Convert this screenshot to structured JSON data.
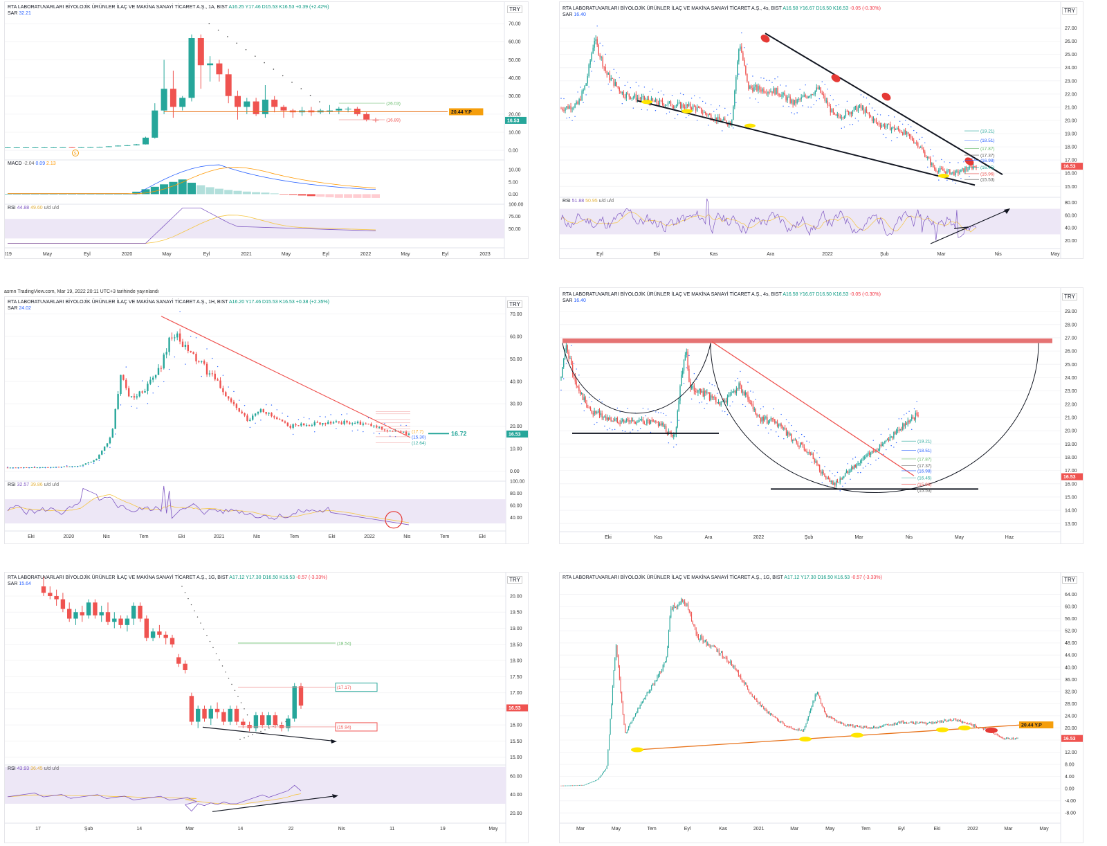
{
  "byline": "asrnn TradingView.com, Mar 19, 2022 20:11 UTC+3 tarihinde yayınlandı",
  "colors": {
    "up": "#26a69a",
    "down": "#ef5350",
    "sar": "#2962ff",
    "rsi": "#7e57c2",
    "rsi_ma": "#f5c542",
    "band": "#ede7f6",
    "trend_black": "#131722",
    "trend_red": "#ef5350",
    "orange": "#f59e0b",
    "yellow": "#ffe500",
    "price_red": "#ef5350",
    "price_green": "#26a69a"
  },
  "panels": [
    {
      "id": "p1",
      "title": {
        "name": "RTA LABORATUVARLARI BİYOLOJİK ÜRÜNLER İLAÇ VE MAKİNA SANAYİ TİCARET A.Ş., 1A, BIST",
        "a": "A16.25",
        "y": "Y17.46",
        "d": "D15.53",
        "k": "K16.53",
        "chg": "+0.39 (+2.42%)"
      },
      "sar": "32.21",
      "currency": "TRY",
      "chart_data": {
        "type": "candlestick",
        "timeframe": "1A",
        "x_labels": [
          "019",
          "May",
          "Eyl",
          "2020",
          "May",
          "Eyl",
          "2021",
          "May",
          "Eyl",
          "2022",
          "May",
          "Eyl",
          "2023"
        ],
        "y_ticks": [
          "70.00",
          "60.00",
          "50.00",
          "40.00",
          "30.00",
          "20.00",
          "10.00",
          "0.00"
        ],
        "ylim": [
          -3,
          75
        ],
        "candles": [
          [
            1.6,
            1.7,
            1.5,
            1.6
          ],
          [
            1.6,
            1.7,
            1.5,
            1.6
          ],
          [
            1.6,
            1.7,
            1.5,
            1.6
          ],
          [
            1.6,
            1.7,
            1.5,
            1.6
          ],
          [
            1.6,
            1.7,
            1.5,
            1.6
          ],
          [
            1.6,
            1.7,
            1.5,
            1.6
          ],
          [
            1.6,
            1.7,
            1.5,
            1.7
          ],
          [
            1.7,
            1.8,
            1.5,
            1.6
          ],
          [
            1.6,
            1.8,
            1.5,
            1.7
          ],
          [
            1.7,
            1.9,
            1.6,
            1.8
          ],
          [
            1.8,
            2.0,
            1.7,
            1.9
          ],
          [
            1.9,
            2.3,
            1.8,
            2.2
          ],
          [
            2.2,
            2.8,
            2.1,
            2.6
          ],
          [
            2.6,
            3.0,
            2.5,
            2.8
          ],
          [
            2.8,
            3.5,
            2.7,
            3.3
          ],
          [
            3.3,
            7.5,
            3.2,
            7
          ],
          [
            7,
            26,
            6.5,
            22
          ],
          [
            22,
            50,
            20,
            34
          ],
          [
            34,
            44,
            18,
            24
          ],
          [
            24,
            30,
            22,
            29
          ],
          [
            29,
            64,
            27,
            62
          ],
          [
            62,
            64,
            34,
            47
          ],
          [
            47,
            52,
            38,
            48
          ],
          [
            48,
            50,
            38,
            42
          ],
          [
            42,
            45,
            26,
            30
          ],
          [
            30,
            33,
            17,
            24
          ],
          [
            24,
            29,
            20,
            27
          ],
          [
            27,
            29,
            19,
            20
          ],
          [
            20,
            36,
            18,
            28
          ],
          [
            28,
            30,
            21,
            24
          ],
          [
            24,
            25,
            18,
            22
          ],
          [
            22,
            23,
            18,
            21
          ],
          [
            21,
            24,
            19,
            22
          ],
          [
            22,
            24,
            19,
            21
          ],
          [
            21,
            23,
            20,
            22
          ],
          [
            22,
            25,
            20,
            22
          ],
          [
            22,
            24,
            20,
            23
          ],
          [
            23,
            24,
            21,
            23
          ],
          [
            23,
            24,
            19,
            20
          ],
          [
            20,
            21,
            16,
            17
          ],
          [
            17,
            18,
            15.5,
            16.5
          ]
        ],
        "indicator_labels": {
          "price_label": "20.44 Y.P",
          "last": "16.53",
          "lvl_green": "(26.03)",
          "lvl_red": "(16.89)",
          "marker": "S"
        },
        "macd": {
          "label": "MACD",
          "values": [
            "-2.04",
            "0.09",
            "2.13"
          ],
          "y_ticks": [
            "10.00",
            "5.00",
            "0.00"
          ]
        },
        "rsi": {
          "label": "RSI",
          "values": [
            "44.88",
            "49.60"
          ],
          "extra": "u/d u/d",
          "y_ticks": [
            "100.00",
            "75.00",
            "50.00"
          ]
        }
      }
    },
    {
      "id": "p2",
      "title": {
        "name": "RTA LABORATUVARLARI BİYOLOJİK ÜRÜNLER İLAÇ VE MAKİNA SANAYİ TİCARET A.Ş., 4s, BIST",
        "a": "A16.58",
        "y": "Y16.67",
        "d": "D16.50",
        "k": "K16.53",
        "chg": "-0.05 (-0.30%)"
      },
      "sar": "16.40",
      "currency": "TRY",
      "chart_data": {
        "type": "candlestick",
        "timeframe": "4s",
        "x_labels": [
          "Eyl",
          "Eki",
          "Kas",
          "Ara",
          "2022",
          "Şub",
          "Mar",
          "Nis",
          "May"
        ],
        "y_ticks": [
          "27.00",
          "26.00",
          "25.00",
          "24.00",
          "23.00",
          "22.00",
          "21.00",
          "20.00",
          "19.00",
          "18.00",
          "17.00",
          "16.00",
          "15.00"
        ],
        "ylim": [
          14.7,
          27.5
        ],
        "levels": [
          "(19.21)",
          "(18.51)",
          "(17.87)",
          "(17.37)",
          "(16.98)",
          "(16.45)",
          "(15.96)",
          "(15.53)"
        ],
        "last": "16.53",
        "rsi": {
          "label": "RSI",
          "values": [
            "51.88",
            "50.95"
          ],
          "extra": "u/d u/d",
          "y_ticks": [
            "80.00",
            "60.00",
            "40.00",
            "20.00"
          ]
        }
      }
    },
    {
      "id": "p3",
      "title": {
        "name": "RTA LABORATUVARLARI BİYOLOJİK ÜRÜNLER İLAÇ VE MAKİNA SANAYİ TİCARET A.Ş., 1H, BIST",
        "a": "A16.20",
        "y": "Y17.46",
        "d": "D15.53",
        "k": "K16.53",
        "chg": "+0.38 (+2.35%)"
      },
      "sar": "24.02",
      "currency": "TRY",
      "chart_data": {
        "type": "candlestick",
        "timeframe": "1H",
        "x_labels": [
          "Eki",
          "2020",
          "Nis",
          "Tem",
          "Eki",
          "2021",
          "Nis",
          "Tem",
          "Eki",
          "2022",
          "Nis",
          "Tem",
          "Eki"
        ],
        "y_ticks": [
          "70.00",
          "60.00",
          "50.00",
          "40.00",
          "30.00",
          "20.00",
          "10.00",
          "0.00"
        ],
        "ylim": [
          -2,
          72
        ],
        "levels": [
          "(17.7)",
          "(15.30)",
          "(12.64)"
        ],
        "target": "16.72",
        "last": "16.53",
        "rsi": {
          "label": "RSI",
          "values": [
            "32.57",
            "39.86"
          ],
          "extra": "u/d u/d",
          "y_ticks": [
            "100.00",
            "80.00",
            "60.00",
            "40.00"
          ]
        }
      }
    },
    {
      "id": "p4",
      "title": {
        "name": "RTA LABORATUVARLARI BİYOLOJİK ÜRÜNLER İLAÇ VE MAKİNA SANAYİ TİCARET A.Ş., 4s, BIST",
        "a": "A16.58",
        "y": "Y16.67",
        "d": "D16.50",
        "k": "K16.53",
        "chg": "-0.05 (-0.30%)"
      },
      "sar": "16.40",
      "currency": "TRY",
      "chart_data": {
        "type": "candlestick",
        "timeframe": "4s",
        "x_labels": [
          "Eki",
          "Kas",
          "Ara",
          "2022",
          "Şub",
          "Mar",
          "Nis",
          "May",
          "Haz"
        ],
        "y_ticks": [
          "29.00",
          "28.00",
          "27.00",
          "26.00",
          "25.00",
          "24.00",
          "23.00",
          "22.00",
          "21.00",
          "20.00",
          "19.00",
          "18.00",
          "17.00",
          "16.00",
          "15.00",
          "14.00",
          "13.00"
        ],
        "ylim": [
          12.7,
          29.5
        ],
        "levels": [
          "(19.21)",
          "(18.51)",
          "(17.87)",
          "(17.37)",
          "(16.98)",
          "(16.45)",
          "(15.96)",
          "(15.53)"
        ],
        "last": "16.53"
      }
    },
    {
      "id": "p5",
      "title": {
        "name": "RTA LABORATUVARLARI BİYOLOJİK ÜRÜNLER İLAÇ VE MAKİNA SANAYİ TİCARET A.Ş., 1G, BIST",
        "a": "A17.12",
        "y": "Y17.30",
        "d": "D16.50",
        "k": "K16.53",
        "chg": "-0.57 (-3.33%)"
      },
      "sar": "15.64",
      "currency": "TRY",
      "chart_data": {
        "type": "candlestick",
        "timeframe": "1G",
        "x_labels": [
          "17",
          "Şub",
          "14",
          "Mar",
          "14",
          "22",
          "Nis",
          "11",
          "19",
          "May"
        ],
        "y_ticks": [
          "20.00",
          "19.50",
          "19.00",
          "18.50",
          "18.00",
          "17.50",
          "17.00",
          "16.50",
          "16.00",
          "15.50",
          "15.00"
        ],
        "ylim": [
          14.8,
          20.3
        ],
        "levels": [
          "(18.54)",
          "(17.17)",
          "(15.94)"
        ],
        "last": "16.53",
        "candles": [
          [
            20.3,
            20.6,
            20.0,
            20.1
          ],
          [
            20.1,
            20.3,
            19.9,
            20.0
          ],
          [
            20.0,
            20.2,
            19.7,
            19.9
          ],
          [
            19.9,
            20.1,
            19.5,
            19.6
          ],
          [
            19.6,
            19.8,
            19.2,
            19.3
          ],
          [
            19.3,
            19.6,
            19.1,
            19.5
          ],
          [
            19.5,
            19.7,
            19.2,
            19.4
          ],
          [
            19.4,
            19.9,
            19.3,
            19.8
          ],
          [
            19.8,
            19.9,
            19.3,
            19.4
          ],
          [
            19.4,
            19.7,
            19.2,
            19.5
          ],
          [
            19.5,
            19.8,
            19.1,
            19.2
          ],
          [
            19.2,
            19.5,
            19.0,
            19.3
          ],
          [
            19.3,
            19.4,
            19.0,
            19.1
          ],
          [
            19.1,
            19.4,
            18.9,
            19.3
          ],
          [
            19.3,
            19.8,
            19.1,
            19.7
          ],
          [
            19.7,
            19.8,
            19.2,
            19.3
          ],
          [
            19.3,
            19.4,
            18.6,
            18.7
          ],
          [
            18.7,
            19.0,
            18.6,
            18.9
          ],
          [
            18.9,
            19.1,
            18.7,
            18.8
          ],
          [
            18.8,
            18.9,
            18.5,
            18.7
          ],
          [
            18.7,
            18.8,
            18.4,
            18.5
          ],
          [
            18.1,
            18.2,
            17.8,
            17.9
          ],
          [
            17.9,
            18.0,
            17.6,
            17.7
          ],
          [
            16.9,
            17.0,
            16.0,
            16.1
          ],
          [
            16.1,
            16.6,
            15.9,
            16.5
          ],
          [
            16.5,
            16.6,
            16.1,
            16.2
          ],
          [
            16.2,
            16.6,
            16.0,
            16.5
          ],
          [
            16.5,
            16.7,
            16.2,
            16.4
          ],
          [
            16.4,
            16.5,
            16.0,
            16.1
          ],
          [
            16.1,
            16.6,
            16.0,
            16.5
          ],
          [
            16.5,
            16.6,
            16.0,
            16.1
          ],
          [
            16.1,
            16.2,
            15.9,
            16.0
          ],
          [
            16.0,
            16.1,
            15.8,
            15.9
          ],
          [
            15.9,
            16.4,
            15.8,
            16.3
          ],
          [
            16.3,
            16.4,
            15.9,
            16.0
          ],
          [
            16.0,
            16.4,
            15.9,
            16.3
          ],
          [
            16.3,
            16.4,
            15.9,
            16.0
          ],
          [
            16.0,
            16.1,
            15.8,
            15.9
          ],
          [
            15.9,
            16.3,
            15.8,
            16.2
          ],
          [
            16.2,
            17.3,
            16.1,
            17.2
          ],
          [
            17.2,
            17.3,
            16.5,
            16.6
          ]
        ],
        "rsi": {
          "label": "RSI",
          "values": [
            "43.93",
            "36.45"
          ],
          "extra": "u/d u/d",
          "y_ticks": [
            "60.00",
            "40.00",
            "20.00"
          ]
        }
      }
    },
    {
      "id": "p6",
      "title": {
        "name": "RTA LABORATUVARLARI BİYOLOJİK ÜRÜNLER İLAÇ VE MAKİNA SANAYİ TİCARET A.Ş., 1G, BIST",
        "a": "A17.12",
        "y": "Y17.30",
        "d": "D16.50",
        "k": "K16.53",
        "chg": "-0.57 (-3.33%)"
      },
      "currency": "TRY",
      "chart_data": {
        "type": "candlestick",
        "timeframe": "1G",
        "x_labels": [
          "Mar",
          "May",
          "Tem",
          "Eyl",
          "Kas",
          "2021",
          "Mar",
          "May",
          "Tem",
          "Eyl",
          "Eki",
          "2022",
          "Mar",
          "May"
        ],
        "y_ticks": [
          "64.00",
          "60.00",
          "56.00",
          "52.00",
          "48.00",
          "44.00",
          "40.00",
          "36.00",
          "32.00",
          "28.00",
          "24.00",
          "20.00",
          "16.00",
          "12.00",
          "8.00",
          "4.00",
          "0.00",
          "-4.00",
          "-8.00"
        ],
        "ylim": [
          -10,
          68
        ],
        "price_label": "20.44 Y.P",
        "last": "16.53"
      }
    }
  ]
}
